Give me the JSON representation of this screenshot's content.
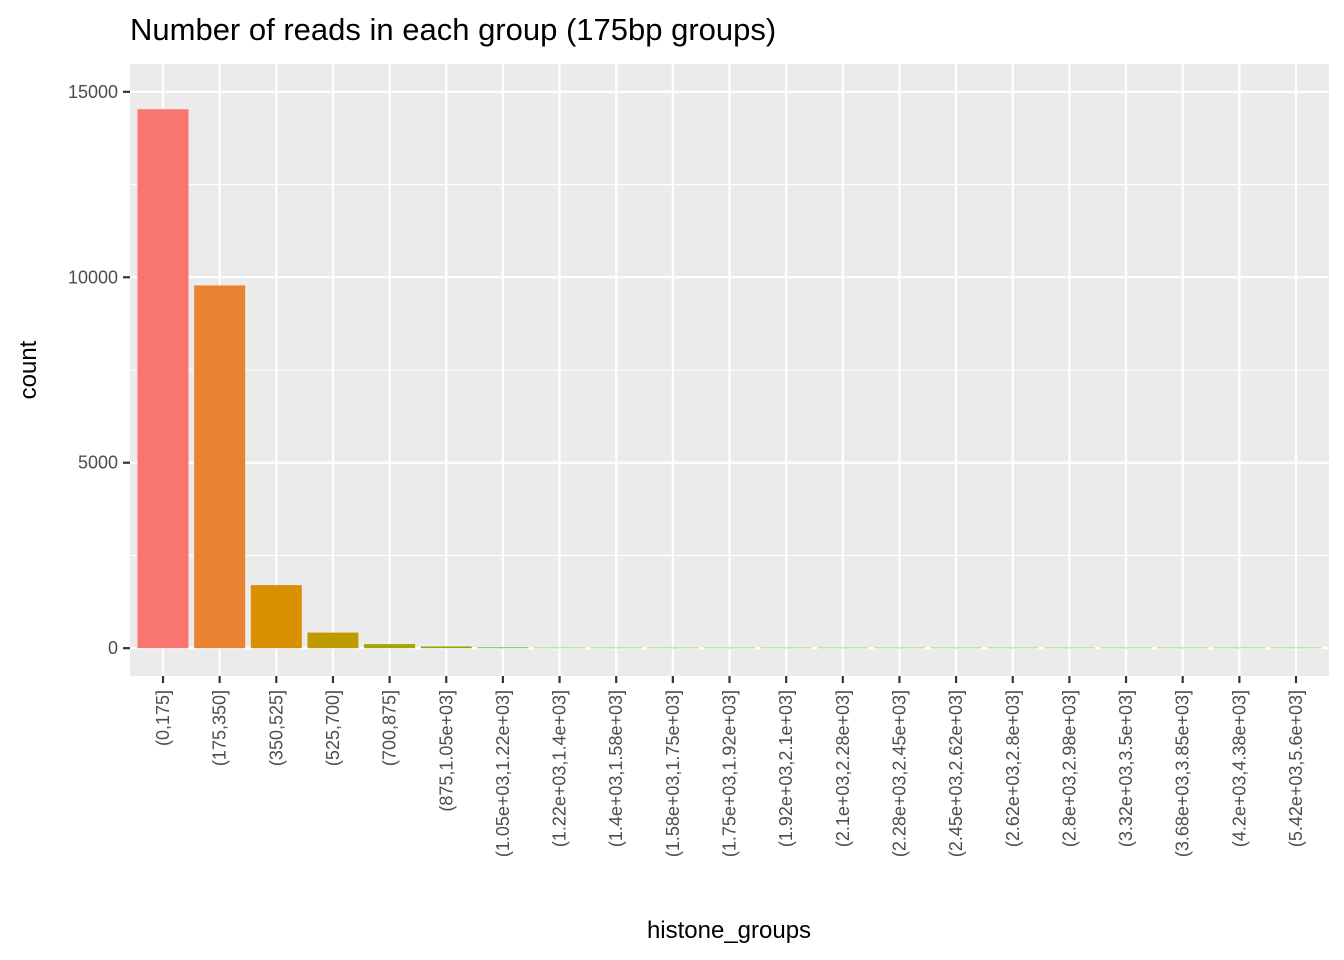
{
  "chart_data": {
    "type": "bar",
    "title": "Number of reads in each group (175bp groups)",
    "xlabel": "histone_groups",
    "ylabel": "count",
    "ylim": [
      -750,
      15750
    ],
    "yticks": [
      0,
      5000,
      10000,
      15000
    ],
    "yticklabels": [
      "0",
      "5000",
      "10000",
      "15000"
    ],
    "grid": true,
    "legend": "none",
    "background": "#ebebeb",
    "gridcolor": "#ffffff",
    "categories": [
      "(0,175]",
      "(175,350]",
      "(350,525]",
      "(525,700]",
      "(700,875]",
      "(875,1.05e+03]",
      "(1.05e+03,1.22e+03]",
      "(1.22e+03,1.4e+03]",
      "(1.4e+03,1.58e+03]",
      "(1.58e+03,1.75e+03]",
      "(1.75e+03,1.92e+03]",
      "(1.92e+03,2.1e+03]",
      "(2.1e+03,2.28e+03]",
      "(2.28e+03,2.45e+03]",
      "(2.45e+03,2.62e+03]",
      "(2.62e+03,2.8e+03]",
      "(2.8e+03,2.98e+03]",
      "(3.32e+03,3.5e+03]",
      "(3.68e+03,3.85e+03]",
      "(4.2e+03,4.38e+03]",
      "(5.42e+03,5.6e+03]"
    ],
    "values": [
      14530,
      9780,
      1700,
      420,
      110,
      45,
      20,
      4,
      3,
      2,
      2,
      1,
      1,
      1,
      1,
      1,
      1,
      1,
      1,
      1,
      1
    ],
    "colors": [
      "#F8766D",
      "#EA8331",
      "#D89000",
      "#C09B00",
      "#A3A500",
      "#7CAE00",
      "#39B600"
    ]
  }
}
